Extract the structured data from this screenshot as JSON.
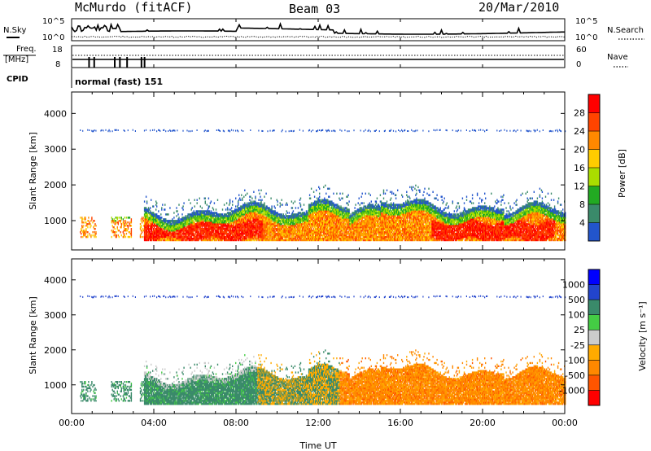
{
  "header": {
    "station": "McMurdo (fitACF)",
    "beam": "Beam 03",
    "date": "20/Mar/2010"
  },
  "noise_panel": {
    "left_label": "N.Sky",
    "right_label": "N.Search",
    "left_ticks": [
      "10^5",
      "10^0"
    ],
    "right_ticks": [
      "10^5",
      "10^0"
    ]
  },
  "freq_panel": {
    "left_label_1": "Freq.",
    "left_label_2": "[MHz]",
    "right_label": "Nave",
    "left_ticks": [
      "18",
      "8"
    ],
    "right_ticks": [
      "60",
      "0"
    ]
  },
  "cpid": {
    "label": "CPID",
    "value": "normal (fast) 151"
  },
  "colors": {
    "power": [
      "#0000ff",
      "#2255cc",
      "#3a8a6a",
      "#22aa22",
      "#aadd00",
      "#ffcc00",
      "#ff8800",
      "#ff4400",
      "#ff0000"
    ],
    "velocity": [
      "#ff0000",
      "#ff5500",
      "#ff8800",
      "#ffaa00",
      "#cccccc",
      "#44cc44",
      "#3a8a6a",
      "#2244cc",
      "#0000ff"
    ]
  },
  "chart_data": [
    {
      "type": "heatmap",
      "name": "power",
      "ylabel": "Slant Range [km]",
      "yticks": [
        1000,
        2000,
        3000,
        4000
      ],
      "ylim": [
        180,
        4600
      ],
      "xlim": [
        0,
        24
      ],
      "colorbar_label": "Power [dB]",
      "colorbar_ticks": [
        "4",
        "8",
        "12",
        "16",
        "20",
        "24",
        "28"
      ],
      "colorbar_range": [
        0,
        30
      ]
    },
    {
      "type": "heatmap",
      "name": "velocity",
      "ylabel": "Slant Range [km]",
      "yticks": [
        1000,
        2000,
        3000,
        4000
      ],
      "ylim": [
        180,
        4600
      ],
      "xlim": [
        0,
        24
      ],
      "colorbar_label": "Velocity [m s⁻¹]",
      "colorbar_ticks": [
        "-1000",
        "-500",
        "-100",
        "-25",
        "25",
        "100",
        "500",
        "1000"
      ]
    }
  ],
  "xaxis": {
    "label": "Time UT",
    "ticks": [
      "00:00",
      "04:00",
      "08:00",
      "12:00",
      "16:00",
      "20:00",
      "00:00"
    ]
  }
}
